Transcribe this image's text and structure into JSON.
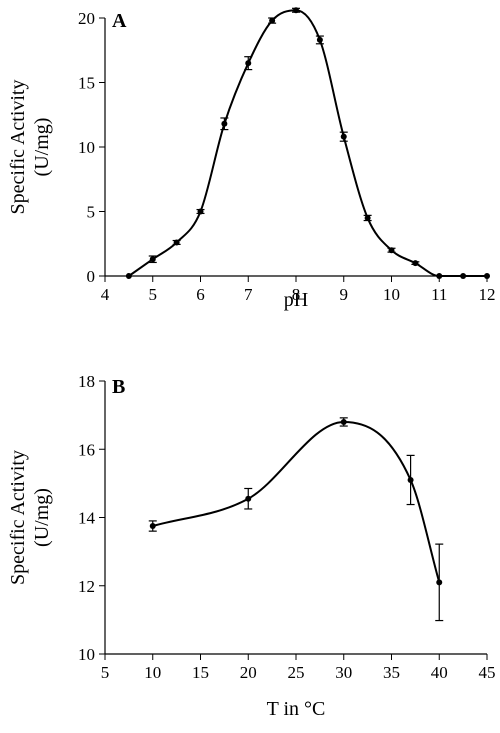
{
  "chart_data": [
    {
      "type": "line",
      "panel_label": "A",
      "xlabel": "pH",
      "ylabel": "Specific Activity (U/mg)",
      "ylabel_lines": [
        "Specific Activity",
        "(U/mg)"
      ],
      "xlim": [
        4,
        12
      ],
      "ylim": [
        0,
        20
      ],
      "xticks": [
        4,
        5,
        6,
        7,
        8,
        9,
        10,
        11,
        12
      ],
      "yticks": [
        0,
        5,
        10,
        15,
        20
      ],
      "grid": false,
      "series": [
        {
          "x": [
            4.5,
            5.0,
            5.5,
            6.0,
            6.5,
            7.0,
            7.5,
            8.0,
            8.5,
            9.0,
            9.5,
            10.0,
            10.5,
            11.0,
            11.5,
            12.0
          ],
          "y": [
            0.0,
            1.3,
            2.6,
            5.0,
            11.8,
            16.5,
            19.8,
            20.6,
            18.3,
            10.8,
            4.5,
            2.0,
            1.0,
            0.0,
            0.0,
            0.0
          ],
          "error": [
            0,
            0.25,
            0.15,
            0.15,
            0.45,
            0.5,
            0.2,
            0.15,
            0.3,
            0.35,
            0.2,
            0.15,
            0.1,
            0,
            0,
            0
          ]
        }
      ]
    },
    {
      "type": "line",
      "panel_label": "B",
      "xlabel": "T in °C",
      "ylabel": "Specific Activity (U/mg)",
      "ylabel_lines": [
        "Specific Activity",
        "(U/mg)"
      ],
      "xlim": [
        5,
        45
      ],
      "ylim": [
        10,
        18
      ],
      "xticks": [
        5,
        10,
        15,
        20,
        25,
        30,
        35,
        40,
        45
      ],
      "yticks": [
        10,
        12,
        14,
        16,
        18
      ],
      "grid": false,
      "series": [
        {
          "x": [
            10,
            20,
            30,
            37,
            40
          ],
          "y": [
            13.75,
            14.55,
            16.8,
            15.1,
            12.1
          ],
          "error": [
            0.15,
            0.3,
            0.12,
            0.72,
            1.12
          ]
        }
      ]
    }
  ]
}
